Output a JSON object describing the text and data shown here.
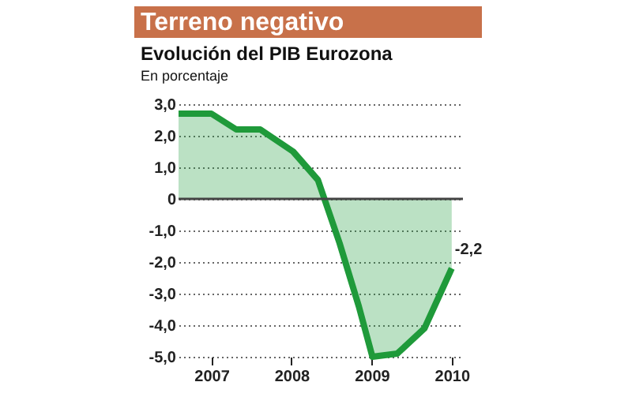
{
  "chart_data": {
    "type": "area",
    "title": "Terreno negativo",
    "subtitle": "Evolución del PIB Eurozona",
    "ylabel": "En porcentaje",
    "x": [
      2006.59,
      2007.0,
      2007.31,
      2007.61,
      2008.02,
      2008.33,
      2008.6,
      2008.84,
      2009.01,
      2009.32,
      2009.66,
      2010.0
    ],
    "series": [
      {
        "color": "#1f9a3a",
        "values": [
          2.7,
          2.7,
          2.2,
          2.2,
          1.5,
          0.6,
          -1.4,
          -3.4,
          -5.0,
          -4.9,
          -4.1,
          -2.2
        ]
      }
    ],
    "xlim": [
      2006.59,
      2010.14
    ],
    "xticks": [
      2007,
      2008,
      2009,
      2010
    ],
    "ylim": [
      -5,
      3
    ],
    "yticks": [
      {
        "value": 3,
        "label": "3,0"
      },
      {
        "value": 2,
        "label": "2,0"
      },
      {
        "value": 1,
        "label": "1,0"
      },
      {
        "value": 0,
        "label": "0"
      },
      {
        "value": -1,
        "label": "-1,0"
      },
      {
        "value": -2,
        "label": "-2,0"
      },
      {
        "value": -3,
        "label": "-3,0"
      },
      {
        "value": -4,
        "label": "-4,0"
      },
      {
        "value": -5,
        "label": "-5,0"
      }
    ],
    "grid": "y",
    "marker": "none",
    "line_style": "solid",
    "ref_lines": [
      {
        "axis": "y",
        "value": 0,
        "color": "#444444"
      }
    ],
    "annotations": [
      {
        "text": "-2,2",
        "x": 2010.0,
        "y": -2.2
      }
    ]
  }
}
